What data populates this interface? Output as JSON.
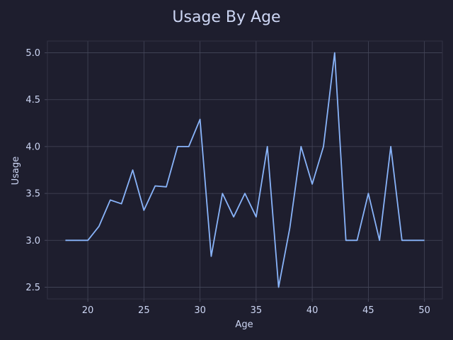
{
  "chart_data": {
    "type": "line",
    "title": "Usage By Age",
    "xlabel": "Age",
    "ylabel": "Usage",
    "xlim": [
      16.4,
      51.6
    ],
    "ylim": [
      2.375,
      5.125
    ],
    "xticks": [
      20,
      25,
      30,
      35,
      40,
      45,
      50
    ],
    "yticks": [
      2.5,
      3.0,
      3.5,
      4.0,
      4.5,
      5.0
    ],
    "ytick_labels": [
      "2.5",
      "3.0",
      "3.5",
      "4.0",
      "4.5",
      "5.0"
    ],
    "grid": true,
    "x": [
      18,
      19,
      20,
      21,
      22,
      23,
      24,
      25,
      26,
      27,
      28,
      29,
      30,
      31,
      32,
      33,
      34,
      35,
      36,
      37,
      38,
      39,
      40,
      41,
      42,
      43,
      44,
      45,
      46,
      47,
      48,
      49,
      50
    ],
    "series": [
      {
        "values": [
          3.0,
          3.0,
          3.0,
          3.15,
          3.43,
          3.39,
          3.75,
          3.32,
          3.58,
          3.57,
          4.0,
          4.0,
          4.29,
          2.83,
          3.5,
          3.25,
          3.5,
          3.25,
          4.0,
          2.5,
          3.13,
          4.0,
          3.6,
          4.0,
          5.0,
          3.0,
          3.0,
          3.5,
          3.0,
          4.0,
          3.0,
          3.0,
          3.0
        ]
      }
    ],
    "colors": {
      "background": "#1e1e2e",
      "line": "#89b4fa",
      "text": "#cdd6f4",
      "grid": "#45475a",
      "frame": "#313244"
    }
  }
}
